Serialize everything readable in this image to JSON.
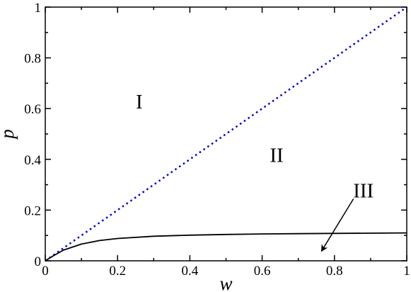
{
  "chart_data": {
    "type": "line",
    "xlabel": "w",
    "ylabel": "p",
    "xlim": [
      0,
      1
    ],
    "ylim": [
      0,
      1
    ],
    "x_ticks": [
      "0",
      "0.2",
      "0.4",
      "0.6",
      "0.8",
      "1"
    ],
    "y_ticks": [
      "0",
      "0.2",
      "0.4",
      "0.6",
      "0.8",
      "1"
    ],
    "series": [
      {
        "style": "dotted",
        "color": "#0000cc",
        "x": [
          0,
          1
        ],
        "y": [
          0,
          1
        ]
      },
      {
        "style": "solid",
        "color": "#000000",
        "x": [
          0,
          0.02,
          0.05,
          0.1,
          0.15,
          0.2,
          0.3,
          0.4,
          0.5,
          0.6,
          0.7,
          0.8,
          0.9,
          1.0
        ],
        "y": [
          0,
          0.018,
          0.042,
          0.066,
          0.08,
          0.088,
          0.097,
          0.101,
          0.104,
          0.106,
          0.107,
          0.108,
          0.109,
          0.11
        ]
      }
    ],
    "annotations": [
      {
        "text": "I",
        "x": 0.26,
        "y": 0.6
      },
      {
        "text": "II",
        "x": 0.64,
        "y": 0.39
      },
      {
        "text": "III",
        "x": 0.88,
        "y": 0.25,
        "arrow_to": [
          0.765,
          0.04
        ]
      }
    ]
  }
}
